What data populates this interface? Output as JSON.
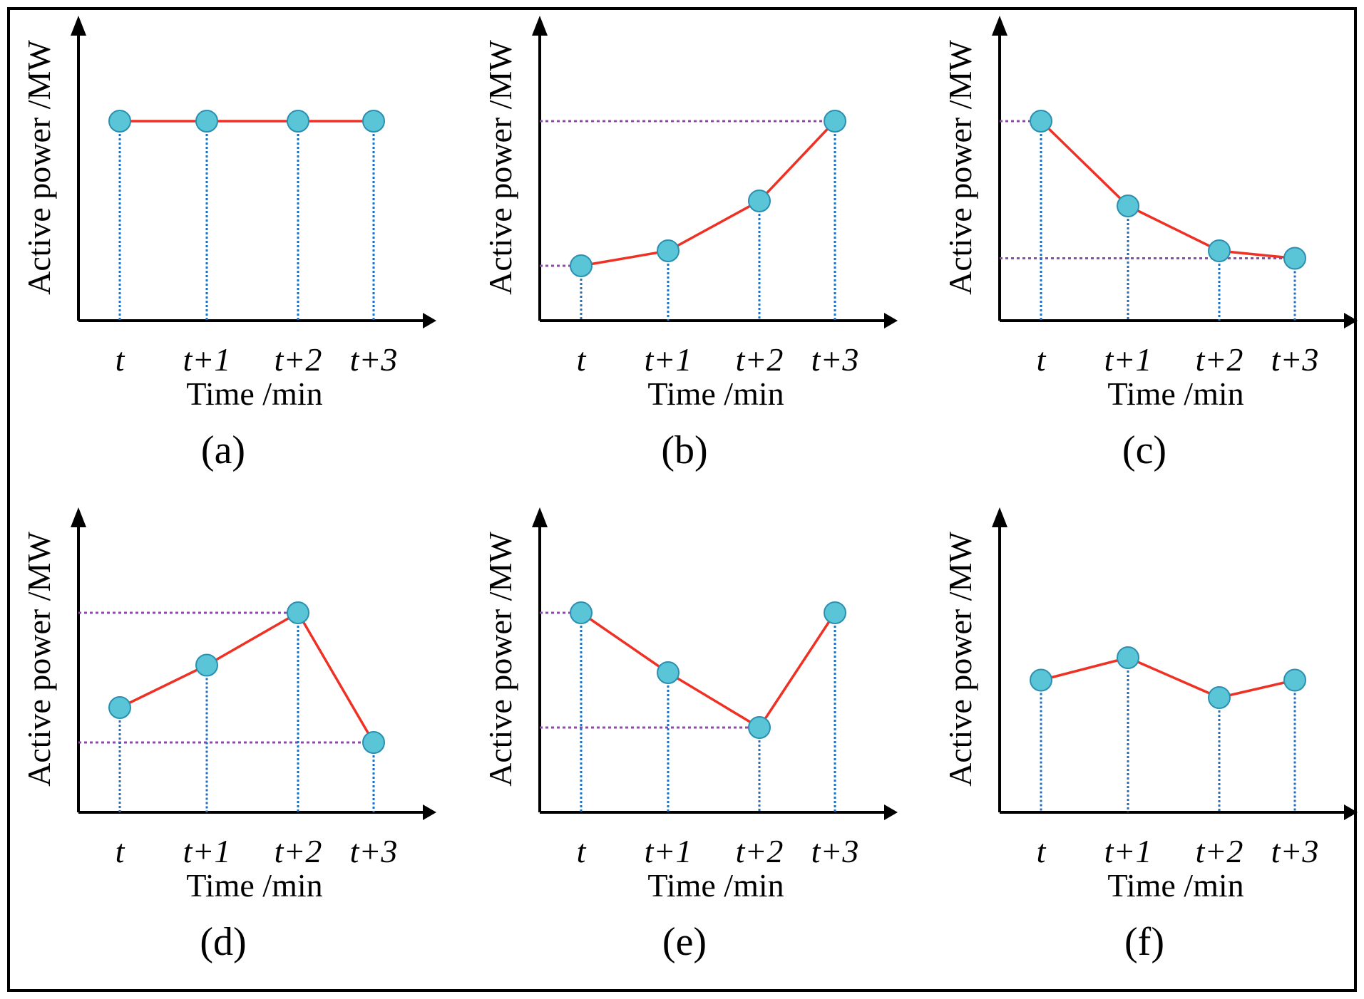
{
  "figure_title": "",
  "colors": {
    "line": "#ee3124",
    "marker_fill": "#5bc5d8",
    "marker_stroke": "#2a8fb0",
    "drop_line": "#1f6fc0",
    "ref_line": "#8e4aa8",
    "axis": "#000000",
    "frame": "#000000"
  },
  "chart_data": [
    {
      "type": "line",
      "panel_label": "(a)",
      "categories": [
        "t",
        "t+1",
        "t+2",
        "t+3"
      ],
      "values": [
        8,
        8,
        8,
        8
      ],
      "ylim": [
        0,
        10
      ],
      "xlabel": "Time /min",
      "ylabel": "Active power /MW",
      "reference_lines": []
    },
    {
      "type": "line",
      "panel_label": "(b)",
      "categories": [
        "t",
        "t+1",
        "t+2",
        "t+3"
      ],
      "values": [
        2.2,
        2.8,
        4.8,
        8.0
      ],
      "ylim": [
        0,
        10
      ],
      "xlabel": "Time /min",
      "ylabel": "Active power /MW",
      "reference_lines": [
        {
          "value": 8.0,
          "to_index": 3
        },
        {
          "value": 2.2,
          "to_index": 0
        }
      ]
    },
    {
      "type": "line",
      "panel_label": "(c)",
      "categories": [
        "t",
        "t+1",
        "t+2",
        "t+3"
      ],
      "values": [
        8.0,
        4.6,
        2.8,
        2.5
      ],
      "ylim": [
        0,
        10
      ],
      "xlabel": "Time /min",
      "ylabel": "Active power /MW",
      "reference_lines": [
        {
          "value": 8.0,
          "to_index": 0
        },
        {
          "value": 2.5,
          "to_index": 3
        }
      ]
    },
    {
      "type": "line",
      "panel_label": "(d)",
      "categories": [
        "t",
        "t+1",
        "t+2",
        "t+3"
      ],
      "values": [
        4.2,
        5.9,
        8.0,
        2.8
      ],
      "ylim": [
        0,
        10
      ],
      "xlabel": "Time /min",
      "ylabel": "Active power /MW",
      "reference_lines": [
        {
          "value": 8.0,
          "to_index": 2
        },
        {
          "value": 2.8,
          "to_index": 3
        }
      ]
    },
    {
      "type": "line",
      "panel_label": "(e)",
      "categories": [
        "t",
        "t+1",
        "t+2",
        "t+3"
      ],
      "values": [
        8.0,
        5.6,
        3.4,
        8.0
      ],
      "ylim": [
        0,
        10
      ],
      "xlabel": "Time /min",
      "ylabel": "Active power /MW",
      "reference_lines": [
        {
          "value": 8.0,
          "to_index": 0
        },
        {
          "value": 3.4,
          "to_index": 2
        }
      ]
    },
    {
      "type": "line",
      "panel_label": "(f)",
      "categories": [
        "t",
        "t+1",
        "t+2",
        "t+3"
      ],
      "values": [
        5.3,
        6.2,
        4.6,
        5.3
      ],
      "ylim": [
        0,
        10
      ],
      "xlabel": "Time /min",
      "ylabel": "Active power /MW",
      "reference_lines": []
    }
  ]
}
